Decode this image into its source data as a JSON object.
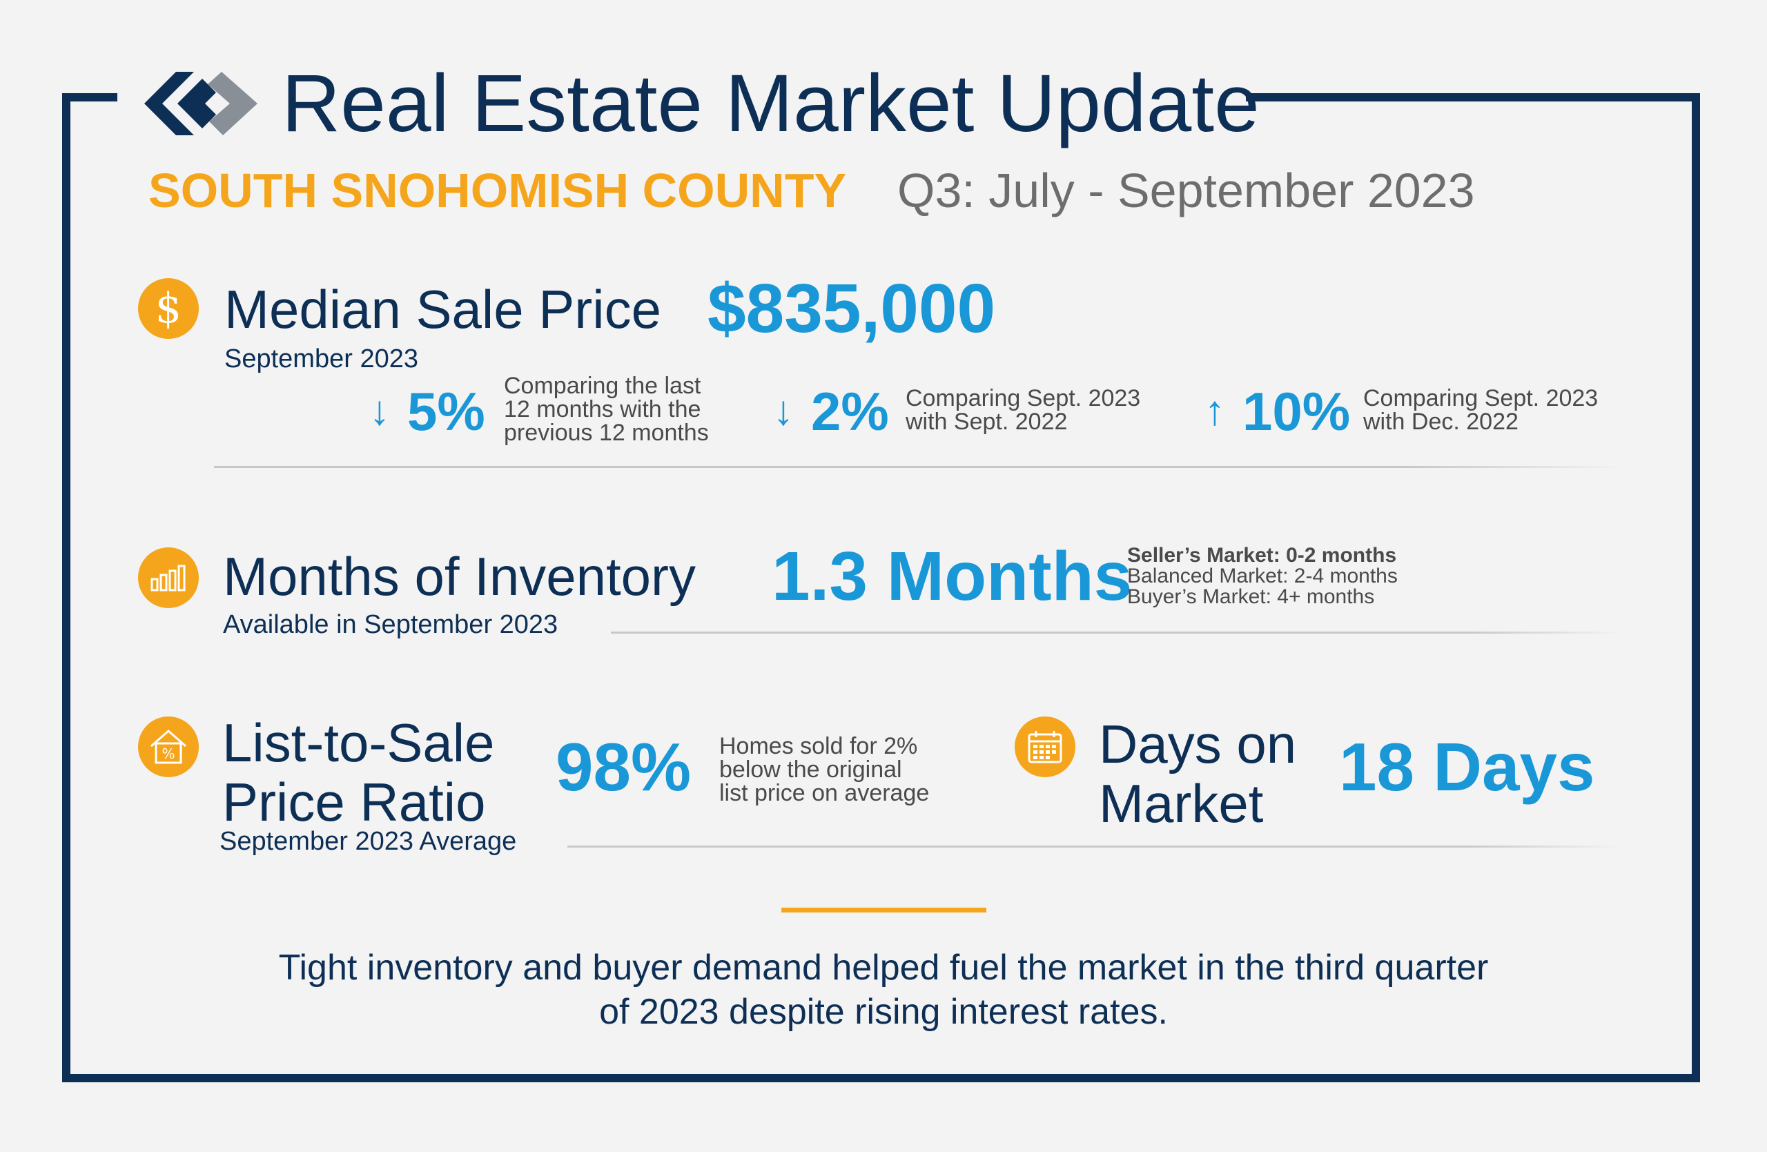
{
  "header": {
    "title": "Real Estate Market Update",
    "county": "SOUTH SNOHOMISH COUNTY",
    "quarter": "Q3: July - September 2023"
  },
  "brand": {
    "accent": "#f5a51b",
    "navy": "#0d2f55",
    "blue": "#1a97d6"
  },
  "median": {
    "label": "Median Sale Price",
    "sub": "September 2023",
    "value": "$835,000",
    "icon": "dollar-icon",
    "changes": [
      {
        "direction": "down",
        "arrow": "↓",
        "pct": "5%",
        "line1": "Comparing the last",
        "line2": "12 months with the",
        "line3": "previous 12 months"
      },
      {
        "direction": "down",
        "arrow": "↓",
        "pct": "2%",
        "line1": "Comparing Sept. 2023",
        "line2": "with Sept. 2022"
      },
      {
        "direction": "up",
        "arrow": "↑",
        "pct": "10%",
        "line1": "Comparing Sept. 2023",
        "line2": "with Dec. 2022"
      }
    ]
  },
  "inventory": {
    "label": "Months of Inventory",
    "sub": "Available in September 2023",
    "value": "1.3 Months",
    "icon": "bar-chart-icon",
    "legend": [
      "Seller’s Market: 0-2 months",
      "Balanced Market: 2-4 months",
      "Buyer’s Market: 4+ months"
    ]
  },
  "ratio": {
    "label_line1": "List-to-Sale",
    "label_line2": "Price Ratio",
    "sub": "September 2023 Average",
    "value": "98%",
    "icon": "house-percent-icon",
    "note_line1": "Homes sold for 2%",
    "note_line2": "below the original",
    "note_line3": "list price on average"
  },
  "dom": {
    "label_line1": "Days on",
    "label_line2": "Market",
    "value": "18 Days",
    "icon": "calendar-icon"
  },
  "summary": {
    "line1": "Tight inventory and buyer demand helped fuel the market in the third quarter",
    "line2": "of 2023 despite rising interest rates."
  }
}
